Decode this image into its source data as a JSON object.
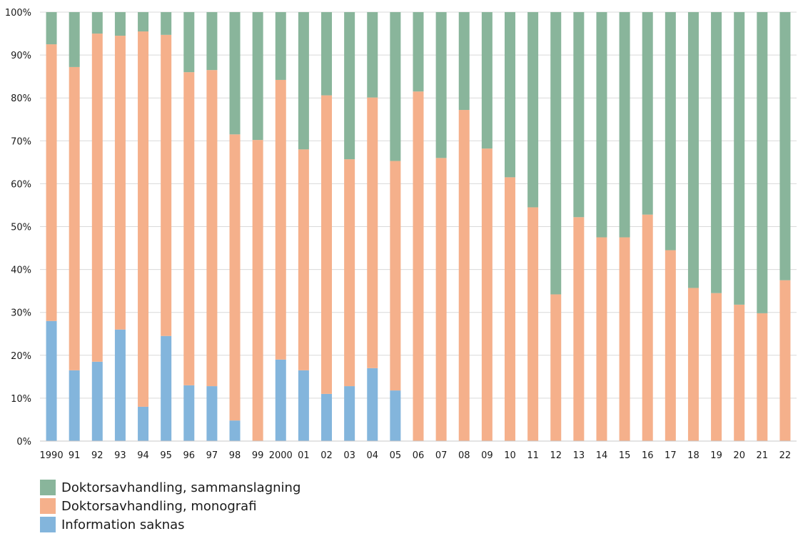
{
  "chart_data": {
    "type": "bar",
    "stacked": true,
    "categories": [
      "1990",
      "91",
      "92",
      "93",
      "94",
      "95",
      "96",
      "97",
      "98",
      "99",
      "2000",
      "01",
      "02",
      "03",
      "04",
      "05",
      "06",
      "07",
      "08",
      "09",
      "10",
      "11",
      "12",
      "13",
      "14",
      "15",
      "16",
      "17",
      "18",
      "19",
      "20",
      "21",
      "22"
    ],
    "series": [
      {
        "name": "Information saknas",
        "color": "#83b5dc",
        "values": [
          28,
          16.5,
          18.5,
          26,
          8,
          24.5,
          13,
          12.8,
          4.8,
          0,
          19,
          16.5,
          11,
          12.8,
          17,
          11.8,
          0,
          0,
          0,
          0,
          0,
          0,
          0,
          0,
          0,
          0,
          0,
          0,
          0,
          0,
          0,
          0,
          0
        ]
      },
      {
        "name": "Doktorsavhandling, monografi",
        "color": "#f5b08b",
        "values": [
          64.5,
          70.7,
          76.5,
          68.5,
          87.5,
          70.2,
          73,
          73.7,
          66.7,
          70.2,
          65.2,
          51.5,
          69.6,
          52.9,
          63.1,
          53.5,
          81.5,
          66,
          77.2,
          68.2,
          61.5,
          54.5,
          34.2,
          52.2,
          47.5,
          47.5,
          52.8,
          44.5,
          35.7,
          34.5,
          31.8,
          29.8,
          37.5
        ]
      },
      {
        "name": "Doktorsavhandling, sammanslagning",
        "color": "#89b59b",
        "values": [
          7.5,
          12.8,
          5,
          5.5,
          4.5,
          5.3,
          14,
          13.5,
          28.5,
          29.8,
          15.8,
          32,
          19.4,
          34.3,
          19.9,
          34.7,
          18.5,
          34,
          22.8,
          31.8,
          38.5,
          45.5,
          65.8,
          47.8,
          52.5,
          52.5,
          47.2,
          55.5,
          64.3,
          65.5,
          68.2,
          70.2,
          62.5
        ]
      }
    ],
    "yticks": [
      "0%",
      "10%",
      "20%",
      "30%",
      "40%",
      "50%",
      "60%",
      "70%",
      "80%",
      "90%",
      "100%"
    ],
    "ylim": [
      0,
      100
    ],
    "grid": true,
    "legend_position": "bottom-left"
  },
  "legend": {
    "items": [
      {
        "label": "Doktorsavhandling, sammanslagning",
        "color": "#89b59b"
      },
      {
        "label": "Doktorsavhandling, monografi",
        "color": "#f5b08b"
      },
      {
        "label": "Information saknas",
        "color": "#83b5dc"
      }
    ]
  }
}
